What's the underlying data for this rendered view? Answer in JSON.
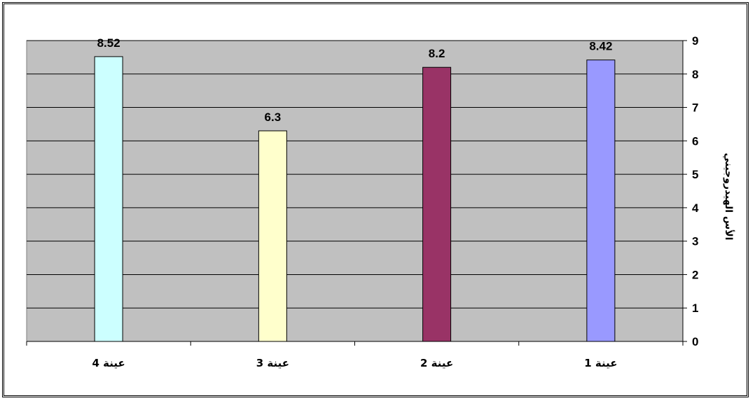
{
  "chart_data": {
    "type": "bar",
    "categories": [
      "عينة 1",
      "عينة 2",
      "عينة 3",
      "عينة 4"
    ],
    "values": [
      8.42,
      8.2,
      6.3,
      8.52
    ],
    "data_labels": [
      "8.42",
      "8.2",
      "6.3",
      "8.52"
    ],
    "bar_colors": [
      "#9999ff",
      "#993366",
      "#ffffcc",
      "#ccffff"
    ],
    "plot_background": "#c0c0c0",
    "ylabel": "الأس الهيدروجيني",
    "ylim": [
      0,
      9
    ],
    "yticks": [
      "0",
      "1",
      "2",
      "3",
      "4",
      "5",
      "6",
      "7",
      "8",
      "9"
    ],
    "y_axis_position": "right",
    "x_axis_direction": "right-to-left",
    "grid": true,
    "legend": false
  }
}
